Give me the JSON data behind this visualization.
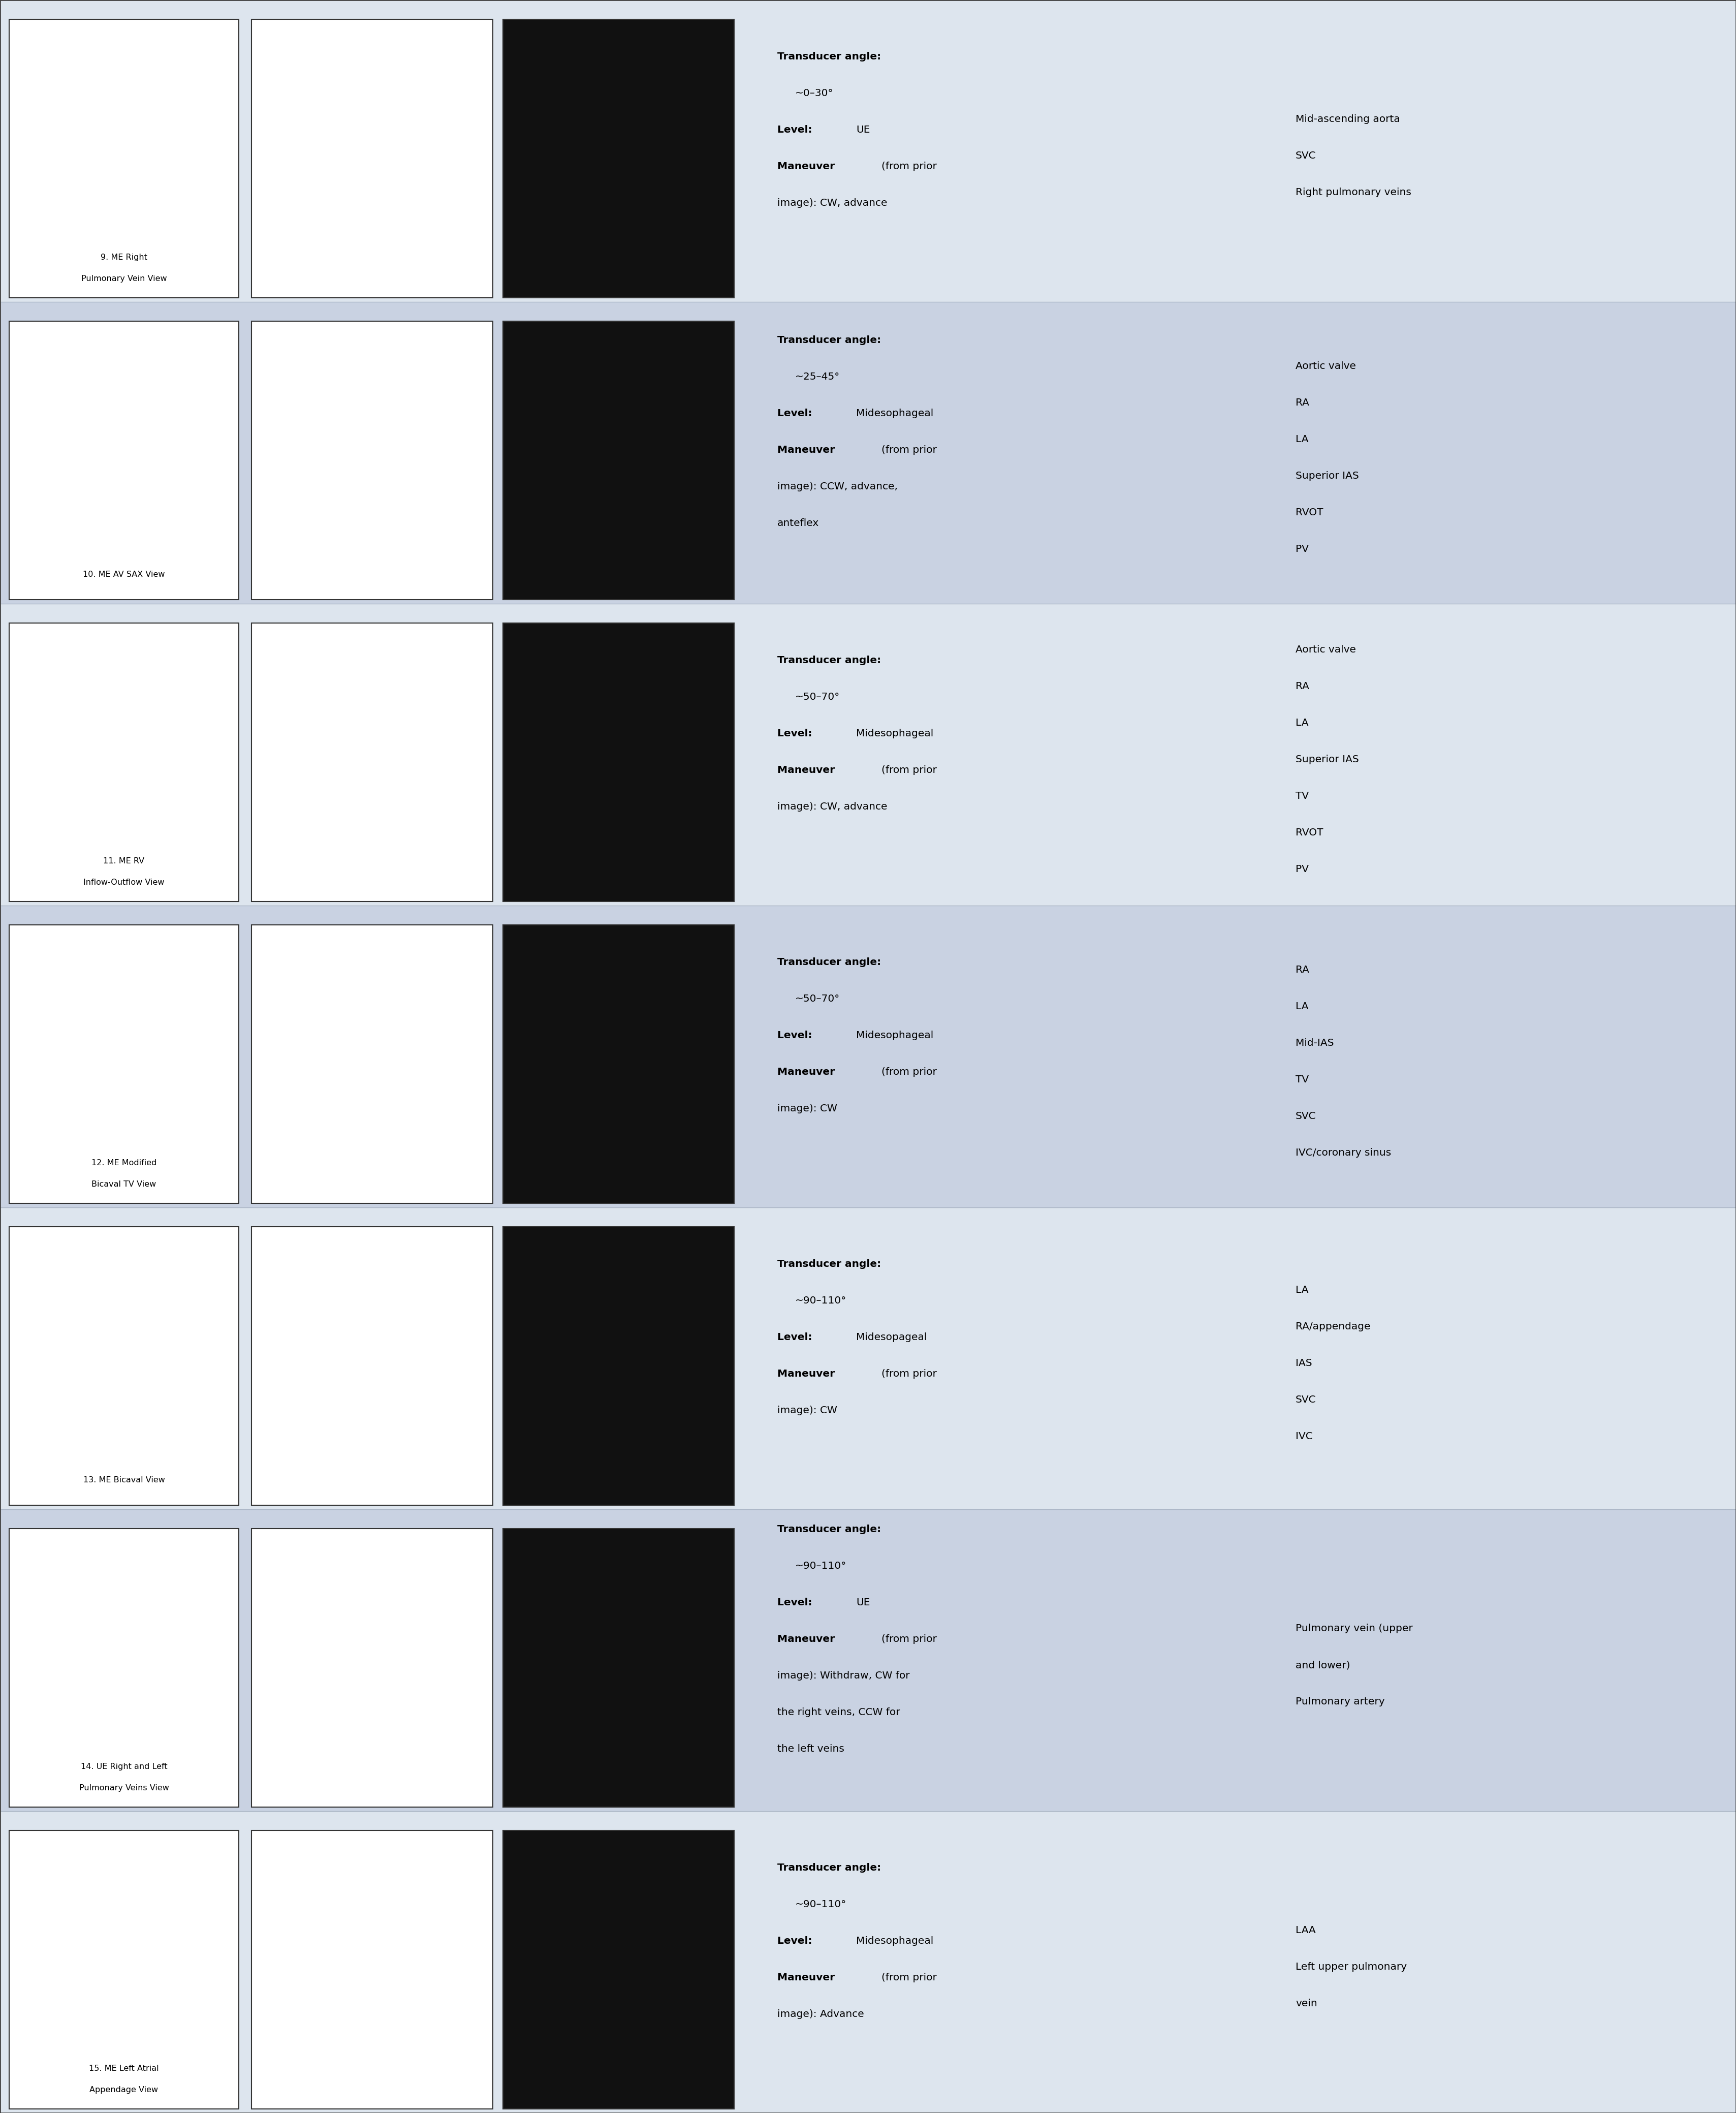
{
  "bg_color_light": "#dde5ee",
  "bg_color_dark": "#c9d2e2",
  "rows": [
    {
      "title_line1": "9. ME Right",
      "title_line2": "Pulmonary Vein View",
      "angle": "~0–30°",
      "level": "UE",
      "maneuver_lines": [
        "(from prior",
        "image): CW, advance"
      ],
      "structures": [
        "Mid-ascending aorta",
        "SVC",
        "Right pulmonary veins"
      ]
    },
    {
      "title_line1": "10. ME AV SAX View",
      "title_line2": "",
      "angle": "~25–45°",
      "level": "Midesophageal",
      "maneuver_lines": [
        "(from prior",
        "image): CCW, advance,",
        "anteflex"
      ],
      "structures": [
        "Aortic valve",
        "RA",
        "LA",
        "Superior IAS",
        "RVOT",
        "PV"
      ]
    },
    {
      "title_line1": "11. ME RV",
      "title_line2": "Inflow-Outflow View",
      "angle": "~50–70°",
      "level": "Midesophageal",
      "maneuver_lines": [
        "(from prior",
        "image): CW, advance"
      ],
      "structures": [
        "Aortic valve",
        "RA",
        "LA",
        "Superior IAS",
        "TV",
        "RVOT",
        "PV"
      ]
    },
    {
      "title_line1": "12. ME Modified",
      "title_line2": "Bicaval TV View",
      "angle": "~50–70°",
      "level": "Midesophageal",
      "maneuver_lines": [
        "(from prior",
        "image): CW"
      ],
      "structures": [
        "RA",
        "LA",
        "Mid-IAS",
        "TV",
        "SVC",
        "IVC/coronary sinus"
      ]
    },
    {
      "title_line1": "13. ME Bicaval View",
      "title_line2": "",
      "angle": "~90–110°",
      "level": "Midesopageal",
      "maneuver_lines": [
        "(from prior",
        "image): CW"
      ],
      "structures": [
        "LA",
        "RA/appendage",
        "IAS",
        "SVC",
        "IVC"
      ]
    },
    {
      "title_line1": "14. UE Right and Left",
      "title_line2": "Pulmonary Veins View",
      "angle": "~90–110°",
      "level": "UE",
      "maneuver_lines": [
        "(from prior",
        "image): Withdraw, CW for",
        "the right veins, CCW for",
        "the left veins"
      ],
      "structures": [
        "Pulmonary vein (upper",
        "and lower)",
        "Pulmonary artery"
      ]
    },
    {
      "title_line1": "15. ME Left Atrial",
      "title_line2": "Appendage View",
      "angle": "~90–110°",
      "level": "Midesophageal",
      "maneuver_lines": [
        "(from prior",
        "image): Advance"
      ],
      "structures": [
        "LAA",
        "Left upper pulmonary",
        "vein"
      ]
    }
  ]
}
